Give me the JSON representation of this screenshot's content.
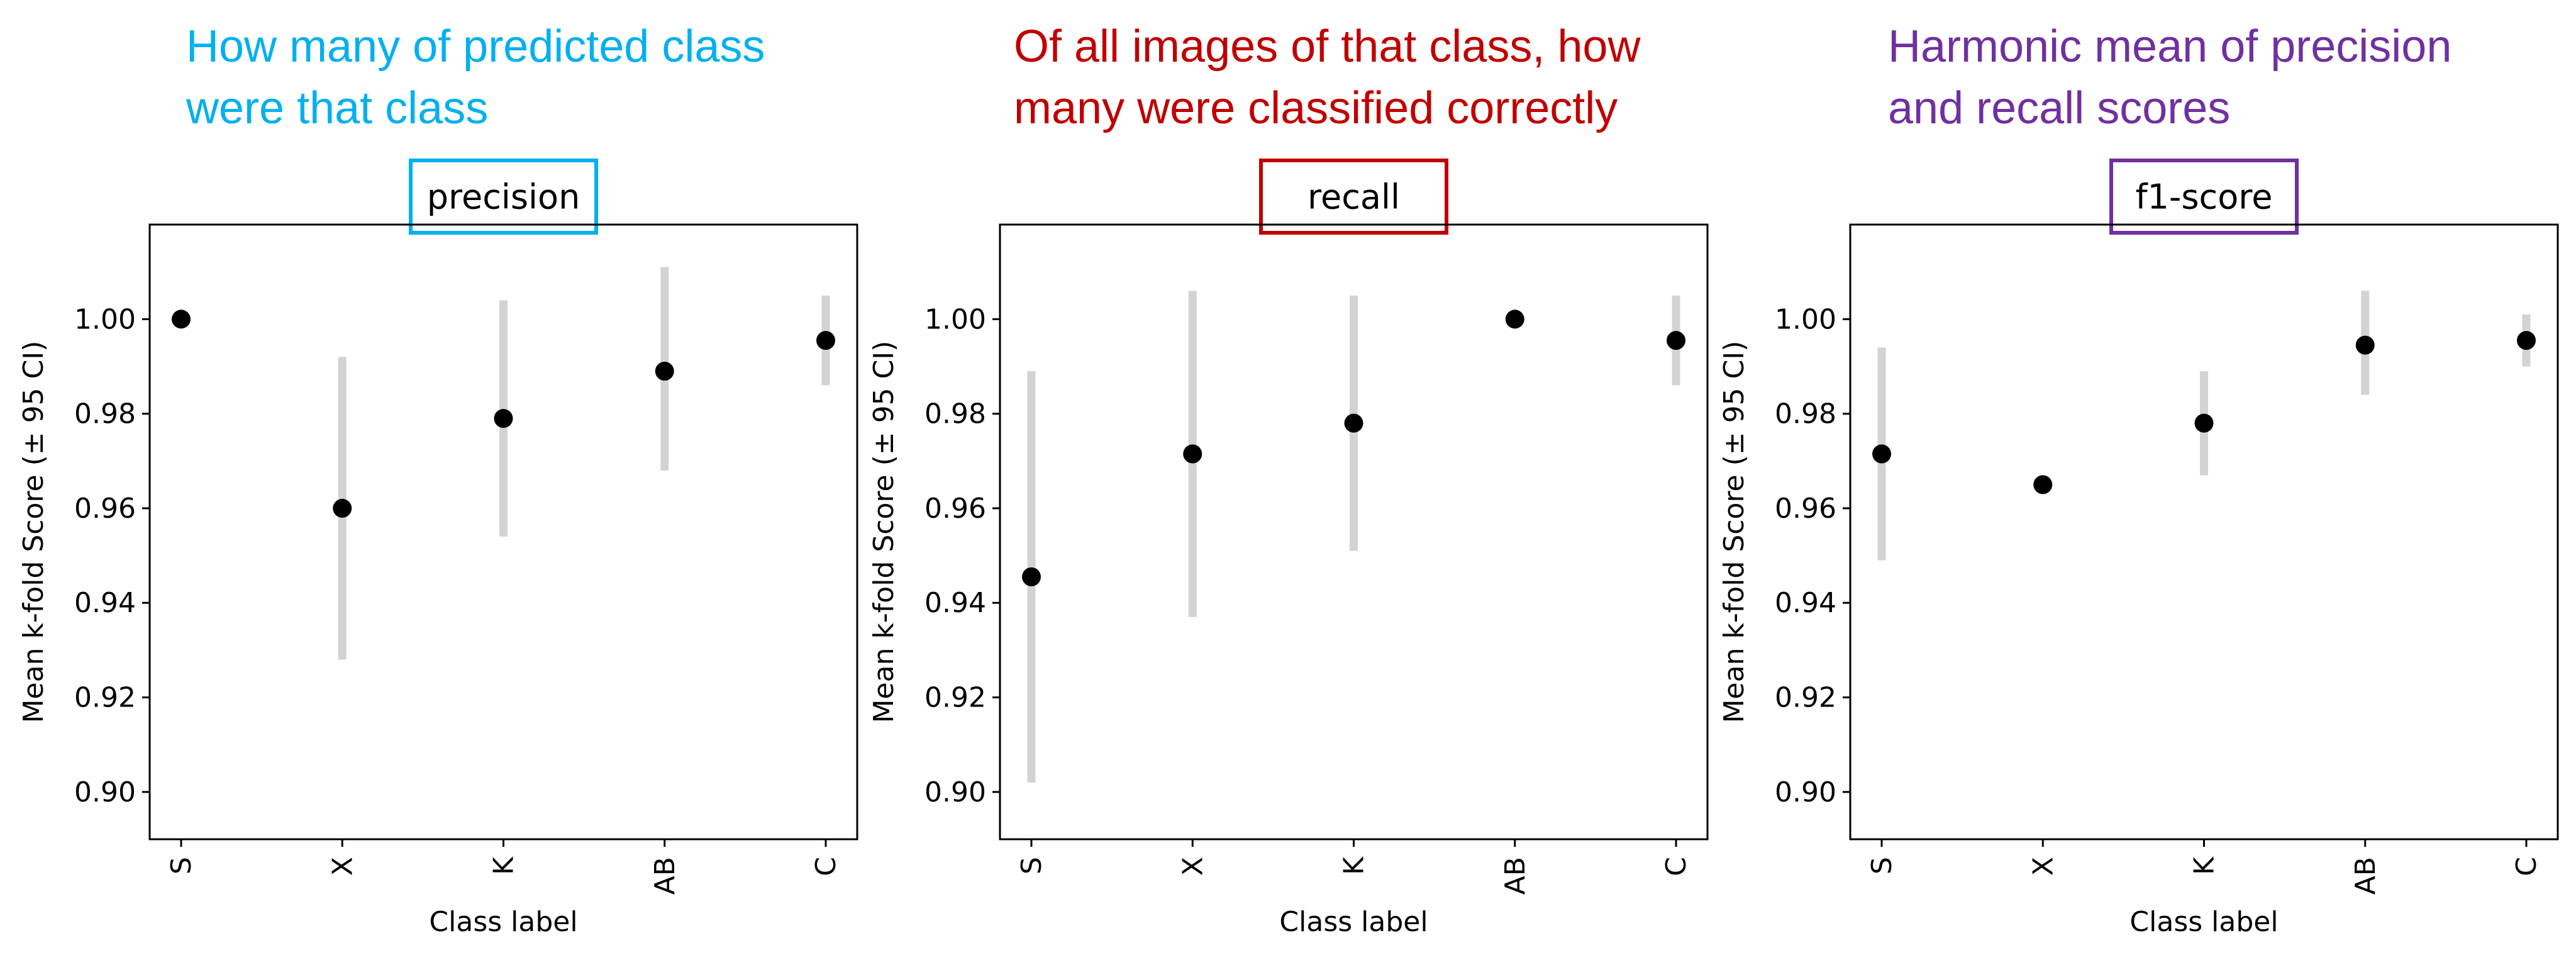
{
  "colors": {
    "precision": "#00B0F0",
    "recall": "#C00000",
    "f1": "#7030A0",
    "point": "#000000",
    "errorbar": "#D3D3D3"
  },
  "chart_data": [
    {
      "type": "scatter",
      "title": "precision",
      "annotation": [
        "How many of predicted class",
        "were that class"
      ],
      "annotation_color": "#00B0F0",
      "xlabel": "Class label",
      "ylabel": "Mean k-fold Score (± 95 CI)",
      "categories": [
        "S",
        "X",
        "K",
        "AB",
        "C"
      ],
      "ylim": [
        0.89,
        1.02
      ],
      "yticks": [
        "0.90",
        "0.92",
        "0.94",
        "0.96",
        "0.98",
        "1.00"
      ],
      "grid": false,
      "series": [
        {
          "values": [
            1.0,
            0.96,
            0.979,
            0.989,
            0.9955
          ],
          "ci_low": [
            1.0,
            0.928,
            0.954,
            0.968,
            0.986
          ],
          "ci_high": [
            1.0,
            0.992,
            1.004,
            1.011,
            1.005
          ]
        }
      ]
    },
    {
      "type": "scatter",
      "title": "recall",
      "annotation": [
        "Of all images of that class, how",
        "many were classified correctly"
      ],
      "annotation_color": "#C00000",
      "xlabel": "Class label",
      "ylabel": "Mean k-fold Score (± 95 CI)",
      "categories": [
        "S",
        "X",
        "K",
        "AB",
        "C"
      ],
      "ylim": [
        0.89,
        1.02
      ],
      "yticks": [
        "0.90",
        "0.92",
        "0.94",
        "0.96",
        "0.98",
        "1.00"
      ],
      "grid": false,
      "series": [
        {
          "values": [
            0.9455,
            0.9715,
            0.978,
            1.0,
            0.9955
          ],
          "ci_low": [
            0.902,
            0.937,
            0.951,
            1.0,
            0.986
          ],
          "ci_high": [
            0.989,
            1.006,
            1.005,
            1.0,
            1.005
          ]
        }
      ]
    },
    {
      "type": "scatter",
      "title": "f1-score",
      "annotation": [
        "Harmonic mean of precision",
        "and recall scores"
      ],
      "annotation_color": "#7030A0",
      "xlabel": "Class label",
      "ylabel": "Mean k-fold Score (± 95 CI)",
      "categories": [
        "S",
        "X",
        "K",
        "AB",
        "C"
      ],
      "ylim": [
        0.89,
        1.02
      ],
      "yticks": [
        "0.90",
        "0.92",
        "0.94",
        "0.96",
        "0.98",
        "1.00"
      ],
      "grid": false,
      "series": [
        {
          "values": [
            0.9715,
            0.965,
            0.978,
            0.9945,
            0.9955
          ],
          "ci_low": [
            0.949,
            0.965,
            0.967,
            0.984,
            0.99
          ],
          "ci_high": [
            0.994,
            0.965,
            0.989,
            1.006,
            1.001
          ]
        }
      ]
    }
  ]
}
